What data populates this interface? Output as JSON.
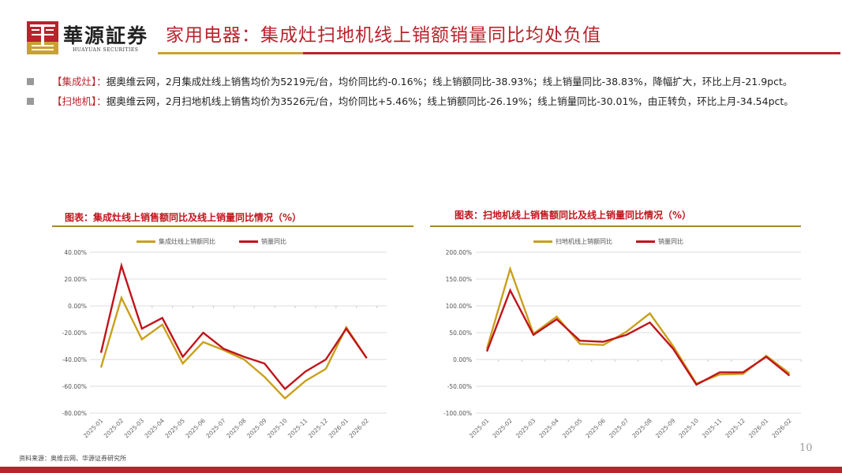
{
  "header": {
    "logo_text": "華源証券",
    "logo_sub": "HUAYUAN SECURITIES",
    "title": "家用电器：集成灶扫地机线上销额销量同比均处负值",
    "colors": {
      "brand_red": "#b8232c",
      "brand_gold": "#c9a133"
    }
  },
  "bullets": [
    {
      "tag": "【集成灶】：",
      "text": "据奥维云网，2月集成灶线上销售均价为5219元/台，均价同比约-0.16%；线上销额同比-38.93%；线上销量同比-38.83%，降幅扩大，环比上月-21.9pct。"
    },
    {
      "tag": "【扫地机】：",
      "text": "据奥维云网，2月扫地机线上销售均价为3526元/台，均价同比+5.46%；线上销额同比-26.19%；线上销量同比-30.01%，由正转负，环比上月-34.54pct。"
    }
  ],
  "chart_data": [
    {
      "type": "line",
      "title": "图表：集成灶线上销售额同比及线上销量同比情况（%）",
      "categories": [
        "2025-01",
        "2025-02",
        "2025-03",
        "2025-04",
        "2025-05",
        "2025-06",
        "2025-07",
        "2025-08",
        "2025-09",
        "2025-10",
        "2025-11",
        "2025-12",
        "2026-01",
        "2026-02"
      ],
      "series": [
        {
          "name": "集成灶线上销额同比",
          "color": "#c9a01c",
          "values": [
            -46,
            6,
            -25,
            -14,
            -43,
            -27,
            -33,
            -40,
            -53,
            -69,
            -56,
            -47,
            -16,
            -39
          ]
        },
        {
          "name": "销量同比",
          "color": "#c0141b",
          "values": [
            -35,
            30,
            -17,
            -9,
            -38,
            -20,
            -32,
            -38,
            -43,
            -62,
            -49,
            -40,
            -17,
            -39
          ]
        }
      ],
      "yticks": [
        "40.00%",
        "20.00%",
        "0.00%",
        "-20.00%",
        "-40.00%",
        "-60.00%",
        "-80.00%"
      ],
      "ylim": [
        -80,
        40
      ],
      "xlabel": "",
      "ylabel": "",
      "grid": true,
      "legend_position": "top"
    },
    {
      "type": "line",
      "title": "图表：扫地机线上销售额同比及线上销量同比情况（%）",
      "categories": [
        "2025-01",
        "2025-02",
        "2025-03",
        "2025-04",
        "2025-05",
        "2025-06",
        "2025-07",
        "2025-08",
        "2025-09",
        "2025-10",
        "2025-11",
        "2025-12",
        "2026-01",
        "2026-02"
      ],
      "series": [
        {
          "name": "扫地机线上销额同比",
          "color": "#c9a01c",
          "values": [
            20,
            169,
            48,
            80,
            29,
            27,
            52,
            86,
            25,
            -45,
            -28,
            -27,
            7,
            -26
          ]
        },
        {
          "name": "销量同比",
          "color": "#c0141b",
          "values": [
            15,
            129,
            46,
            75,
            35,
            33,
            46,
            69,
            20,
            -47,
            -24,
            -24,
            5,
            -30
          ]
        }
      ],
      "yticks": [
        "200.00%",
        "150.00%",
        "100.00%",
        "50.00%",
        "0.00%",
        "-50.00%",
        "-100.00%"
      ],
      "ylim": [
        -100,
        200
      ],
      "xlabel": "",
      "ylabel": "",
      "grid": true,
      "legend_position": "top"
    }
  ],
  "footer": {
    "source": "资料来源：奥维云网、华源证券研究所",
    "page_number": "10"
  }
}
